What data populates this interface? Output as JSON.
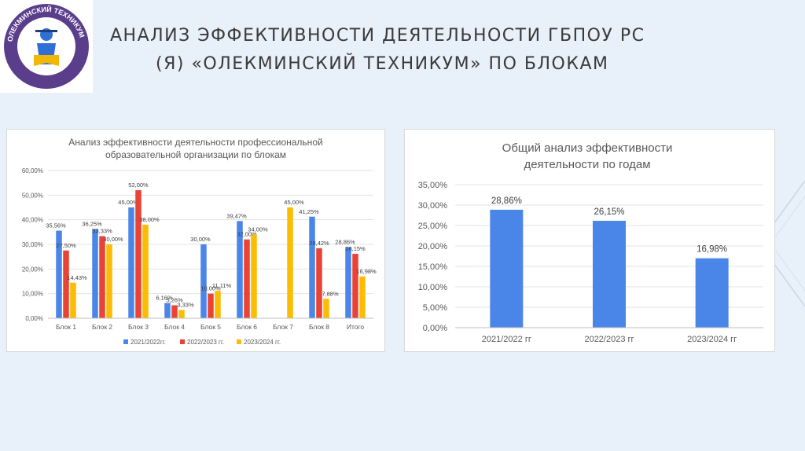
{
  "slide": {
    "title_line1": "АНАЛИЗ ЭФФЕКТИВНОСТИ ДЕЯТЕЛЬНОСТИ ГБПОУ РС",
    "title_line2": "(Я) «ОЛЕКМИНСКИЙ ТЕХНИКУМ» ПО БЛОКАМ"
  },
  "logo": {
    "ring_text": "ОЛЕКМИНСКИЙ ТЕХНИКУМ",
    "colors": {
      "ring": "#5a3e8c",
      "figure": "#2f6fd6"
    }
  },
  "chart_data": [
    {
      "type": "bar",
      "title_line1": "Анализ эффективности деятельности профессиональной",
      "title_line2": "образовательной организации по блокам",
      "categories": [
        "Блок 1",
        "Блок 2",
        "Блок 3",
        "Блок 4",
        "Блок 5",
        "Блок 6",
        "Блок 7",
        "Блок 8",
        "Итого"
      ],
      "ylim": [
        0,
        60
      ],
      "yticks": [
        "0,00%",
        "10,00%",
        "20,00%",
        "30,00%",
        "40,00%",
        "50,00%",
        "60,00%"
      ],
      "legend_position": "bottom",
      "grid": true,
      "series": [
        {
          "name": "2021/2022гг.",
          "color": "#4a86e8",
          "values": [
            35.56,
            36.25,
            45.0,
            6.16,
            30.0,
            39.47,
            null,
            41.25,
            28.86
          ],
          "labels": [
            "35,56%",
            "36,25%",
            "45,00%",
            "6,16%",
            "30,00%",
            "39,47%",
            "",
            "41,25%",
            "28,86%"
          ]
        },
        {
          "name": "2022/2023 гг.",
          "color": "#ea4335",
          "values": [
            27.5,
            33.33,
            52.0,
            5.26,
            10.0,
            32.0,
            null,
            28.42,
            26.15
          ],
          "labels": [
            "27,50%",
            "33,33%",
            "52,00%",
            "5,26%",
            "10,00%",
            "32,00%",
            "",
            "28,42%",
            "26,15%"
          ]
        },
        {
          "name": "2023/2024 гг.",
          "color": "#fbbc04",
          "values": [
            14.43,
            30.0,
            38.0,
            3.33,
            11.11,
            34.0,
            45.0,
            7.88,
            16.98
          ],
          "labels": [
            "14,43%",
            "30,00%",
            "38,00%",
            "3,33%",
            "11,11%",
            "34,00%",
            "45,00%",
            "7,88%",
            "16,98%"
          ]
        }
      ]
    },
    {
      "type": "bar",
      "title_line1": "Общий анализ эффективности",
      "title_line2": "деятельности по годам",
      "categories": [
        "2021/2022 гг",
        "2022/2023 гг",
        "2023/2024 гг"
      ],
      "values": [
        28.86,
        26.15,
        16.98
      ],
      "labels": [
        "28,86%",
        "26,15%",
        "16,98%"
      ],
      "color": "#4a86e8",
      "ylim": [
        0,
        35
      ],
      "yticks": [
        "0,00%",
        "5,00%",
        "10,00%",
        "15,00%",
        "20,00%",
        "25,00%",
        "30,00%",
        "35,00%"
      ],
      "grid": true
    }
  ]
}
